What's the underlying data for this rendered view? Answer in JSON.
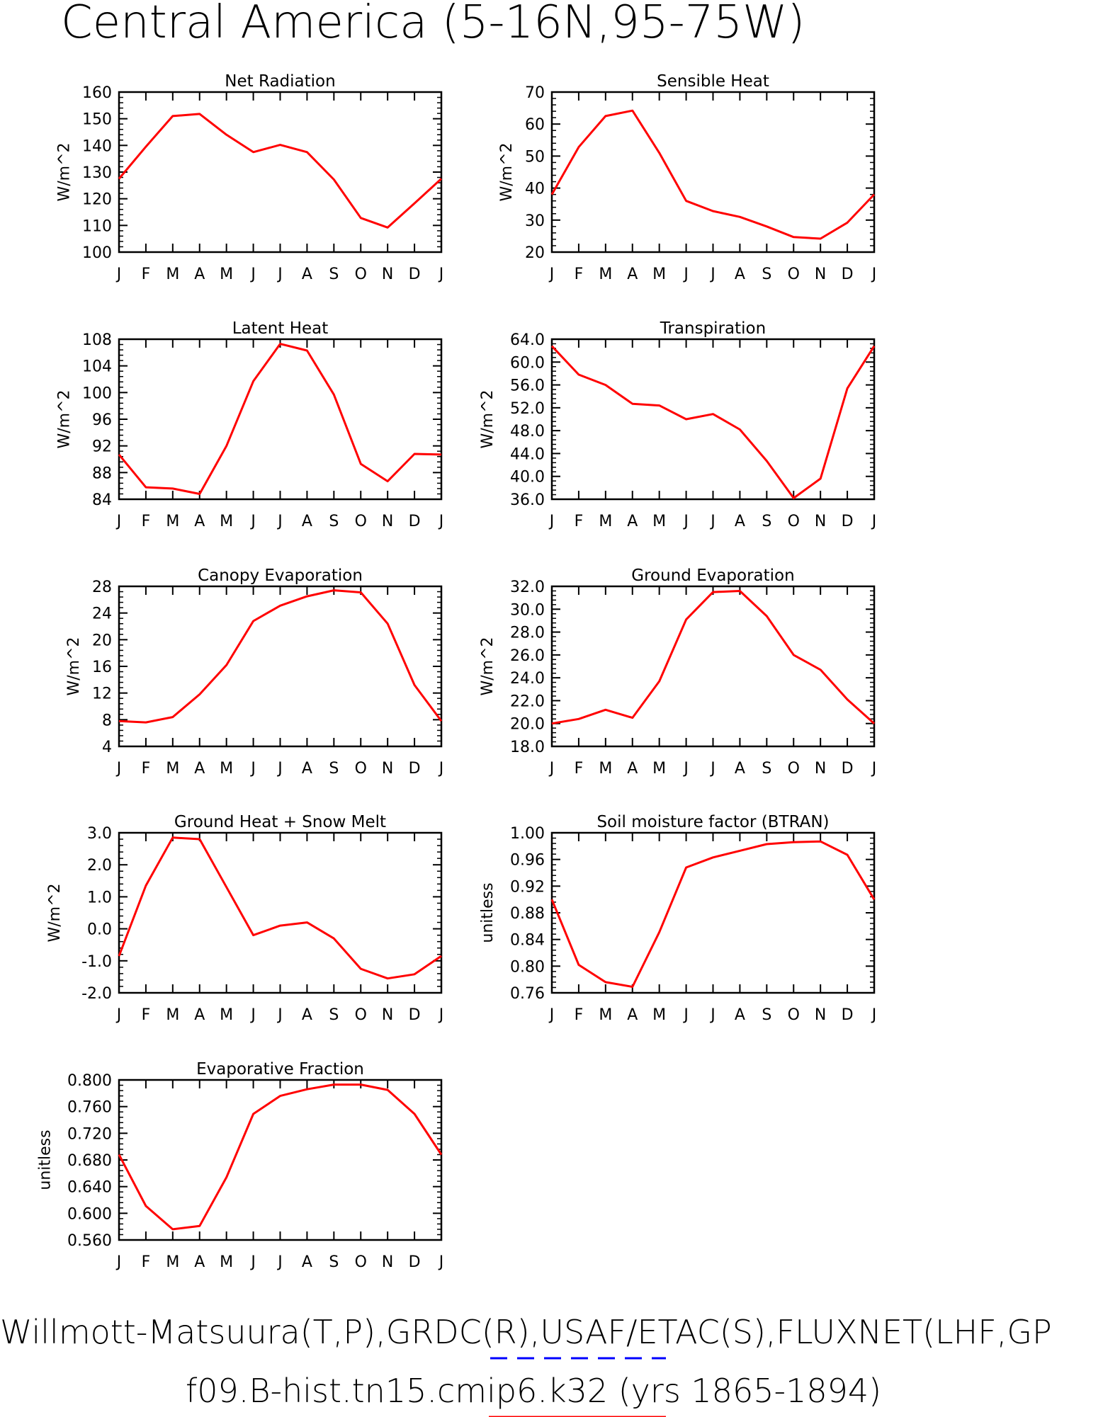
{
  "title": "Central America (5-16N,95-75W)",
  "footer": {
    "line1": "Willmott-Matsuura(T,P),GRDC(R),USAF/ETAC(S),FLUXNET(LHF,GP",
    "line2": "f09.B-hist.tn15.cmip6.k32 (yrs 1865-1894)"
  },
  "colors": {
    "model": "#ff0000",
    "obs": "#0000ff",
    "axes": "#000000"
  },
  "months": [
    "J",
    "F",
    "M",
    "A",
    "M",
    "J",
    "J",
    "A",
    "S",
    "O",
    "N",
    "D",
    "J"
  ],
  "chart_data": [
    {
      "type": "line",
      "title": "Net Radiation",
      "ylabel": "W/m^2",
      "ylim": [
        100,
        160
      ],
      "yticks": [
        "100",
        "110",
        "120",
        "130",
        "140",
        "150",
        "160"
      ],
      "values": [
        127.5,
        139.5,
        151,
        151.8,
        144,
        137.5,
        140.2,
        137.5,
        127.2,
        112.8,
        109.2,
        118.3,
        127.5
      ]
    },
    {
      "type": "line",
      "title": "Sensible Heat",
      "ylabel": "W/m^2",
      "ylim": [
        20,
        70
      ],
      "yticks": [
        "20",
        "30",
        "40",
        "50",
        "60",
        "70"
      ],
      "values": [
        38,
        52.8,
        62.5,
        64.2,
        51,
        36,
        32.8,
        31,
        28,
        24.7,
        24.2,
        29.2,
        38
      ]
    },
    {
      "type": "line",
      "title": "Latent Heat",
      "ylabel": "W/m^2",
      "ylim": [
        84,
        108
      ],
      "yticks": [
        "84",
        "88",
        "92",
        "96",
        "100",
        "104",
        "108"
      ],
      "values": [
        90.7,
        85.8,
        85.6,
        84.8,
        92,
        101.7,
        107.3,
        106.3,
        99.7,
        89.3,
        86.7,
        90.8,
        90.7
      ]
    },
    {
      "type": "line",
      "title": "Transpiration",
      "ylabel": "W/m^2",
      "ylim": [
        36,
        64
      ],
      "yticks": [
        "36.0",
        "40.0",
        "44.0",
        "48.0",
        "52.0",
        "56.0",
        "60.0",
        "64.0"
      ],
      "values": [
        62.8,
        57.8,
        56,
        52.7,
        52.4,
        50,
        50.9,
        48.2,
        42.7,
        36.2,
        39.6,
        55.4,
        62.8
      ]
    },
    {
      "type": "line",
      "title": "Canopy Evaporation",
      "ylabel": "W/m^2",
      "ylim": [
        4,
        28
      ],
      "yticks": [
        "4",
        "8",
        "12",
        "16",
        "20",
        "24",
        "28"
      ],
      "values": [
        7.8,
        7.6,
        8.4,
        11.8,
        16.2,
        22.8,
        25.1,
        26.5,
        27.4,
        27.1,
        22.4,
        13.2,
        7.8
      ]
    },
    {
      "type": "line",
      "title": "Ground Evaporation",
      "ylabel": "W/m^2",
      "ylim": [
        18,
        32
      ],
      "yticks": [
        "18.0",
        "20.0",
        "22.0",
        "24.0",
        "26.0",
        "28.0",
        "30.0",
        "32.0"
      ],
      "values": [
        20,
        20.4,
        21.2,
        20.5,
        23.7,
        29.1,
        31.5,
        31.6,
        29.4,
        26,
        24.7,
        22.1,
        20
      ]
    },
    {
      "type": "line",
      "title": "Ground Heat + Snow Melt",
      "ylabel": "W/m^2",
      "ylim": [
        -2,
        3
      ],
      "yticks": [
        "-2.0",
        "-1.0",
        "0.0",
        "1.0",
        "2.0",
        "3.0"
      ],
      "values": [
        -0.85,
        1.35,
        2.85,
        2.8,
        1.3,
        -0.2,
        0.1,
        0.2,
        -0.3,
        -1.25,
        -1.55,
        -1.42,
        -0.85
      ]
    },
    {
      "type": "line",
      "title": "Soil moisture factor (BTRAN)",
      "ylabel": "unitless",
      "ylim": [
        0.76,
        1.0
      ],
      "yticks": [
        "0.76",
        "0.80",
        "0.84",
        "0.88",
        "0.92",
        "0.96",
        "1.00"
      ],
      "values": [
        0.9,
        0.802,
        0.776,
        0.769,
        0.851,
        0.948,
        0.963,
        0.973,
        0.983,
        0.986,
        0.987,
        0.967,
        0.9
      ]
    },
    {
      "type": "line",
      "title": "Evaporative Fraction",
      "ylabel": "unitless",
      "ylim": [
        0.56,
        0.8
      ],
      "yticks": [
        "0.560",
        "0.600",
        "0.640",
        "0.680",
        "0.720",
        "0.760",
        "0.800"
      ],
      "values": [
        0.688,
        0.611,
        0.576,
        0.581,
        0.654,
        0.749,
        0.776,
        0.786,
        0.793,
        0.793,
        0.785,
        0.749,
        0.688
      ]
    }
  ]
}
